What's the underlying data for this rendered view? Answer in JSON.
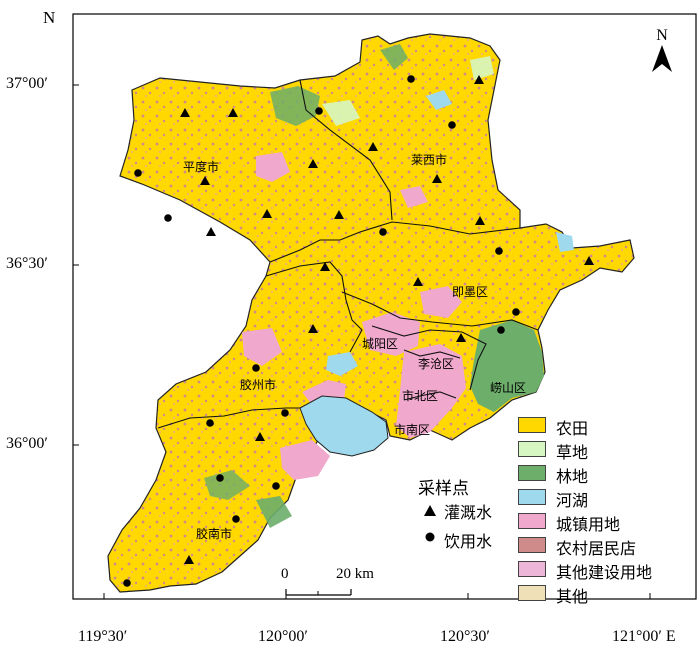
{
  "north_label": "N",
  "coords": {
    "lat_top": "37°00′",
    "lat_mid": "36°30′",
    "lat_bot": "36°00′",
    "lon_1": "119°30′",
    "lon_2": "120°00′",
    "lon_3": "120°30′",
    "lon_4": "121°00′ E"
  },
  "districts": [
    {
      "name": "平度市"
    },
    {
      "name": "莱西市"
    },
    {
      "name": "即墨区"
    },
    {
      "name": "城阳区"
    },
    {
      "name": "李沧区"
    },
    {
      "name": "胶州市"
    },
    {
      "name": "崂山区"
    },
    {
      "name": "市北区"
    },
    {
      "name": "市南区"
    },
    {
      "name": "胶南市"
    }
  ],
  "legend": [
    {
      "label": "农田",
      "color": "#ffd800"
    },
    {
      "label": "草地",
      "color": "#d6f7c2"
    },
    {
      "label": "林地",
      "color": "#6cae6a"
    },
    {
      "label": "河湖",
      "color": "#9fd9ee"
    },
    {
      "label": "城镇用地",
      "color": "#f0a8cd"
    },
    {
      "label": "农村居民店",
      "color": "#cf8a8a"
    },
    {
      "label": "其他建设用地",
      "color": "#ecb6d9"
    },
    {
      "label": "其他",
      "color": "#f0e0b8"
    }
  ],
  "sample_points": {
    "title": "采样点",
    "irrigation": "灌溉水",
    "drinking": "饮用水"
  },
  "scale_bar": {
    "start": "0",
    "end": "20 km"
  }
}
